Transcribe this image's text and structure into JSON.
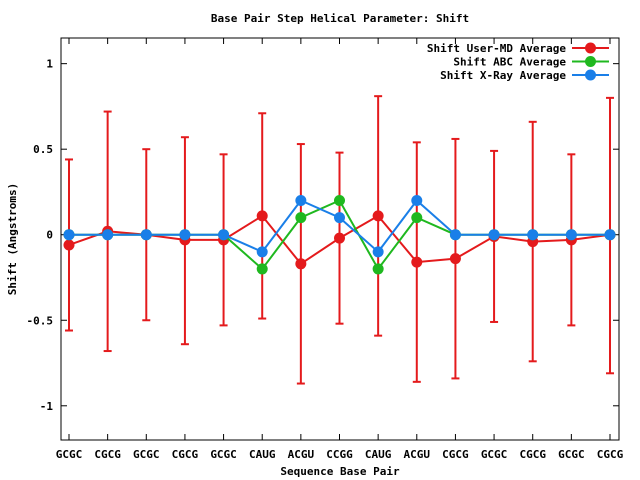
{
  "chart_data": {
    "type": "line",
    "title": "Base Pair Step Helical Parameter: Shift",
    "xlabel": "Sequence Base Pair",
    "ylabel": "Shift (Angstroms)",
    "ylim": [
      -1.2,
      1.15
    ],
    "yticks": [
      -1,
      -0.5,
      0,
      0.5,
      1
    ],
    "ytick_labels": [
      "-1",
      "-0.5",
      "0",
      "0.5",
      "1"
    ],
    "categories": [
      "GCGC",
      "CGCG",
      "GCGC",
      "CGCG",
      "GCGC",
      "CAUG",
      "ACGU",
      "CCGG",
      "CAUG",
      "ACGU",
      "CGCG",
      "GCGC",
      "CGCG",
      "GCGC",
      "CGCG"
    ],
    "legend_position": "top-right",
    "grid": false,
    "series": [
      {
        "name": "Shift User-MD Average",
        "color": "#e41a1c",
        "values": [
          -0.06,
          0.02,
          0.0,
          -0.03,
          -0.03,
          0.11,
          -0.17,
          -0.02,
          0.11,
          -0.16,
          -0.14,
          -0.01,
          -0.04,
          -0.03,
          0.0
        ],
        "error_low": [
          -0.56,
          -0.68,
          -0.5,
          -0.64,
          -0.53,
          -0.49,
          -0.87,
          -0.52,
          -0.59,
          -0.86,
          -0.84,
          -0.51,
          -0.74,
          -0.53,
          -0.81
        ],
        "error_high": [
          0.44,
          0.72,
          0.5,
          0.57,
          0.47,
          0.71,
          0.53,
          0.48,
          0.81,
          0.54,
          0.56,
          0.49,
          0.66,
          0.47,
          0.8
        ]
      },
      {
        "name": "Shift ABC Average",
        "color": "#1fb81f",
        "values": [
          0.0,
          0.0,
          0.0,
          0.0,
          0.0,
          -0.2,
          0.1,
          0.2,
          -0.2,
          0.1,
          0.0,
          0.0,
          0.0,
          0.0,
          0.0
        ]
      },
      {
        "name": "Shift X-Ray Average",
        "color": "#1a7fe8",
        "values": [
          0.0,
          0.0,
          0.0,
          0.0,
          0.0,
          -0.1,
          0.2,
          0.1,
          -0.1,
          0.2,
          0.0,
          0.0,
          0.0,
          0.0,
          0.0
        ]
      }
    ]
  }
}
